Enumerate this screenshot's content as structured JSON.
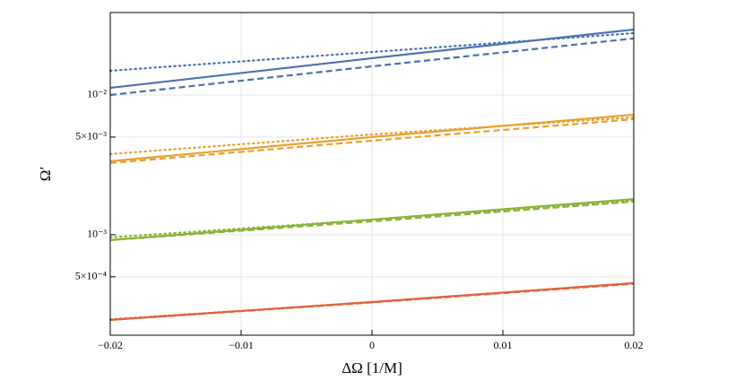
{
  "chart_data": {
    "type": "line",
    "x_label": "ΔΩ [1/M]",
    "y_label": "Ω′",
    "x": [
      -0.02,
      0,
      0.02
    ],
    "xlim": [
      -0.02,
      0.02
    ],
    "xticks": [
      {
        "value": -0.02,
        "label": "−0.02"
      },
      {
        "value": -0.01,
        "label": "−0.01"
      },
      0,
      0.01,
      0.02
    ],
    "ylim": [
      0.000191,
      0.0389
    ],
    "yticks": [
      {
        "value": 0.0005,
        "label": "5×10⁻⁴"
      },
      {
        "value": 0.001,
        "label": "10⁻³"
      },
      {
        "value": 0.005,
        "label": "5×10⁻³"
      },
      {
        "value": 0.01,
        "label": "10⁻²"
      }
    ],
    "log_y": true,
    "grid": true,
    "series": [
      {
        "color": "#4c72b0",
        "style": "solid",
        "values": [
          0.01125,
          0.01833,
          0.0294
        ]
      },
      {
        "color": "#4c72b0",
        "style": "dashed",
        "values": [
          0.01,
          0.01603,
          0.0254
        ]
      },
      {
        "color": "#4c72b0",
        "style": "dotted",
        "values": [
          0.0149,
          0.0203,
          0.0277
        ]
      },
      {
        "color": "#e8a133",
        "style": "solid",
        "values": [
          0.00336,
          0.005,
          0.00723
        ]
      },
      {
        "color": "#e8a133",
        "style": "dashed",
        "values": [
          0.00326,
          0.00471,
          0.00671
        ]
      },
      {
        "color": "#e8a133",
        "style": "dotted",
        "values": [
          0.00378,
          0.00522,
          0.00692
        ]
      },
      {
        "color": "#8cb23a",
        "style": "solid",
        "values": [
          0.000916,
          0.001285,
          0.0018
        ]
      },
      {
        "color": "#8cb23a",
        "style": "dashed",
        "values": [
          0.000916,
          0.001247,
          0.001726
        ]
      },
      {
        "color": "#8cb23a",
        "style": "dotted",
        "values": [
          0.000957,
          0.00128,
          0.00175
        ]
      },
      {
        "color": "#e2623b",
        "style": "solid",
        "values": [
          0.000246,
          0.00033,
          0.000451
        ]
      },
      {
        "color": "#e2623b",
        "style": "dashed",
        "values": [
          0.000246,
          0.000328,
          0.000446
        ]
      },
      {
        "color": "#e2623b",
        "style": "dotted",
        "values": [
          0.000248,
          0.000329,
          0.000448
        ]
      }
    ]
  }
}
